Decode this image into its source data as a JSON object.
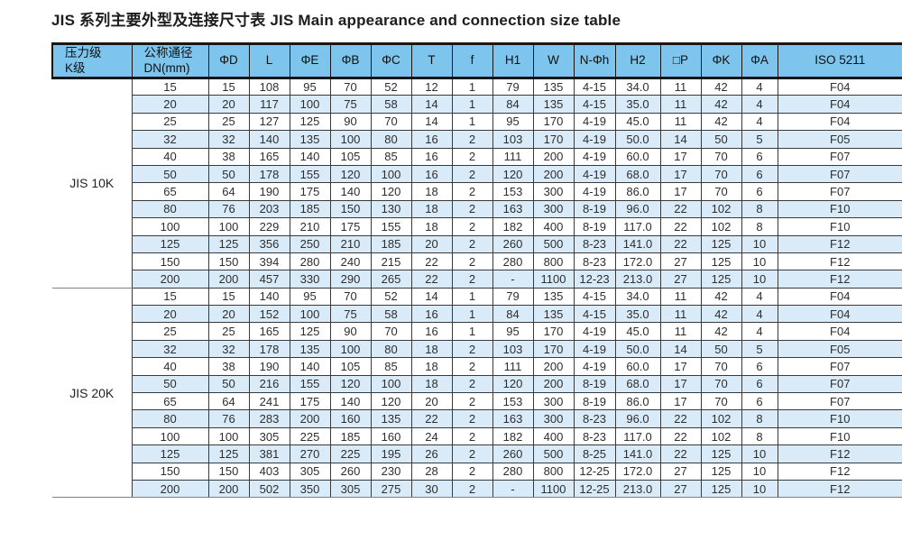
{
  "title": "JIS 系列主要外型及连接尺寸表  JIS Main appearance and connection size table",
  "colors": {
    "header_bg": "#7dc5ec",
    "stripe_bg": "#d9eaf8",
    "border_dark": "#161616",
    "border_thin": "#3a3a3a",
    "border_soft": "#808080"
  },
  "table": {
    "headers": [
      [
        "压力级",
        "K级"
      ],
      [
        "公称通径",
        "DN(mm)"
      ],
      [
        "ΦD"
      ],
      [
        "L"
      ],
      [
        "ΦE"
      ],
      [
        "ΦB"
      ],
      [
        "ΦC"
      ],
      [
        "T"
      ],
      [
        "f"
      ],
      [
        "H1"
      ],
      [
        "W"
      ],
      [
        "N-Φh"
      ],
      [
        "H2"
      ],
      [
        "□P"
      ],
      [
        "ΦK"
      ],
      [
        "ΦA"
      ],
      [
        "ISO 5211"
      ]
    ],
    "groups": [
      {
        "label": "JIS 10K",
        "rows": [
          [
            "15",
            "15",
            "108",
            "95",
            "70",
            "52",
            "12",
            "1",
            "79",
            "135",
            "4-15",
            "34.0",
            "11",
            "42",
            "4",
            "F04"
          ],
          [
            "20",
            "20",
            "117",
            "100",
            "75",
            "58",
            "14",
            "1",
            "84",
            "135",
            "4-15",
            "35.0",
            "11",
            "42",
            "4",
            "F04"
          ],
          [
            "25",
            "25",
            "127",
            "125",
            "90",
            "70",
            "14",
            "1",
            "95",
            "170",
            "4-19",
            "45.0",
            "11",
            "42",
            "4",
            "F04"
          ],
          [
            "32",
            "32",
            "140",
            "135",
            "100",
            "80",
            "16",
            "2",
            "103",
            "170",
            "4-19",
            "50.0",
            "14",
            "50",
            "5",
            "F05"
          ],
          [
            "40",
            "38",
            "165",
            "140",
            "105",
            "85",
            "16",
            "2",
            "111",
            "200",
            "4-19",
            "60.0",
            "17",
            "70",
            "6",
            "F07"
          ],
          [
            "50",
            "50",
            "178",
            "155",
            "120",
            "100",
            "16",
            "2",
            "120",
            "200",
            "4-19",
            "68.0",
            "17",
            "70",
            "6",
            "F07"
          ],
          [
            "65",
            "64",
            "190",
            "175",
            "140",
            "120",
            "18",
            "2",
            "153",
            "300",
            "4-19",
            "86.0",
            "17",
            "70",
            "6",
            "F07"
          ],
          [
            "80",
            "76",
            "203",
            "185",
            "150",
            "130",
            "18",
            "2",
            "163",
            "300",
            "8-19",
            "96.0",
            "22",
            "102",
            "8",
            "F10"
          ],
          [
            "100",
            "100",
            "229",
            "210",
            "175",
            "155",
            "18",
            "2",
            "182",
            "400",
            "8-19",
            "117.0",
            "22",
            "102",
            "8",
            "F10"
          ],
          [
            "125",
            "125",
            "356",
            "250",
            "210",
            "185",
            "20",
            "2",
            "260",
            "500",
            "8-23",
            "141.0",
            "22",
            "125",
            "10",
            "F12"
          ],
          [
            "150",
            "150",
            "394",
            "280",
            "240",
            "215",
            "22",
            "2",
            "280",
            "800",
            "8-23",
            "172.0",
            "27",
            "125",
            "10",
            "F12"
          ],
          [
            "200",
            "200",
            "457",
            "330",
            "290",
            "265",
            "22",
            "2",
            "-",
            "1100",
            "12-23",
            "213.0",
            "27",
            "125",
            "10",
            "F12"
          ]
        ]
      },
      {
        "label": "JIS 20K",
        "rows": [
          [
            "15",
            "15",
            "140",
            "95",
            "70",
            "52",
            "14",
            "1",
            "79",
            "135",
            "4-15",
            "34.0",
            "11",
            "42",
            "4",
            "F04"
          ],
          [
            "20",
            "20",
            "152",
            "100",
            "75",
            "58",
            "16",
            "1",
            "84",
            "135",
            "4-15",
            "35.0",
            "11",
            "42",
            "4",
            "F04"
          ],
          [
            "25",
            "25",
            "165",
            "125",
            "90",
            "70",
            "16",
            "1",
            "95",
            "170",
            "4-19",
            "45.0",
            "11",
            "42",
            "4",
            "F04"
          ],
          [
            "32",
            "32",
            "178",
            "135",
            "100",
            "80",
            "18",
            "2",
            "103",
            "170",
            "4-19",
            "50.0",
            "14",
            "50",
            "5",
            "F05"
          ],
          [
            "40",
            "38",
            "190",
            "140",
            "105",
            "85",
            "18",
            "2",
            "111",
            "200",
            "4-19",
            "60.0",
            "17",
            "70",
            "6",
            "F07"
          ],
          [
            "50",
            "50",
            "216",
            "155",
            "120",
            "100",
            "18",
            "2",
            "120",
            "200",
            "8-19",
            "68.0",
            "17",
            "70",
            "6",
            "F07"
          ],
          [
            "65",
            "64",
            "241",
            "175",
            "140",
            "120",
            "20",
            "2",
            "153",
            "300",
            "8-19",
            "86.0",
            "17",
            "70",
            "6",
            "F07"
          ],
          [
            "80",
            "76",
            "283",
            "200",
            "160",
            "135",
            "22",
            "2",
            "163",
            "300",
            "8-23",
            "96.0",
            "22",
            "102",
            "8",
            "F10"
          ],
          [
            "100",
            "100",
            "305",
            "225",
            "185",
            "160",
            "24",
            "2",
            "182",
            "400",
            "8-23",
            "117.0",
            "22",
            "102",
            "8",
            "F10"
          ],
          [
            "125",
            "125",
            "381",
            "270",
            "225",
            "195",
            "26",
            "2",
            "260",
            "500",
            "8-25",
            "141.0",
            "22",
            "125",
            "10",
            "F12"
          ],
          [
            "150",
            "150",
            "403",
            "305",
            "260",
            "230",
            "28",
            "2",
            "280",
            "800",
            "12-25",
            "172.0",
            "27",
            "125",
            "10",
            "F12"
          ],
          [
            "200",
            "200",
            "502",
            "350",
            "305",
            "275",
            "30",
            "2",
            "-",
            "1100",
            "12-25",
            "213.0",
            "27",
            "125",
            "10",
            "F12"
          ]
        ]
      }
    ]
  }
}
